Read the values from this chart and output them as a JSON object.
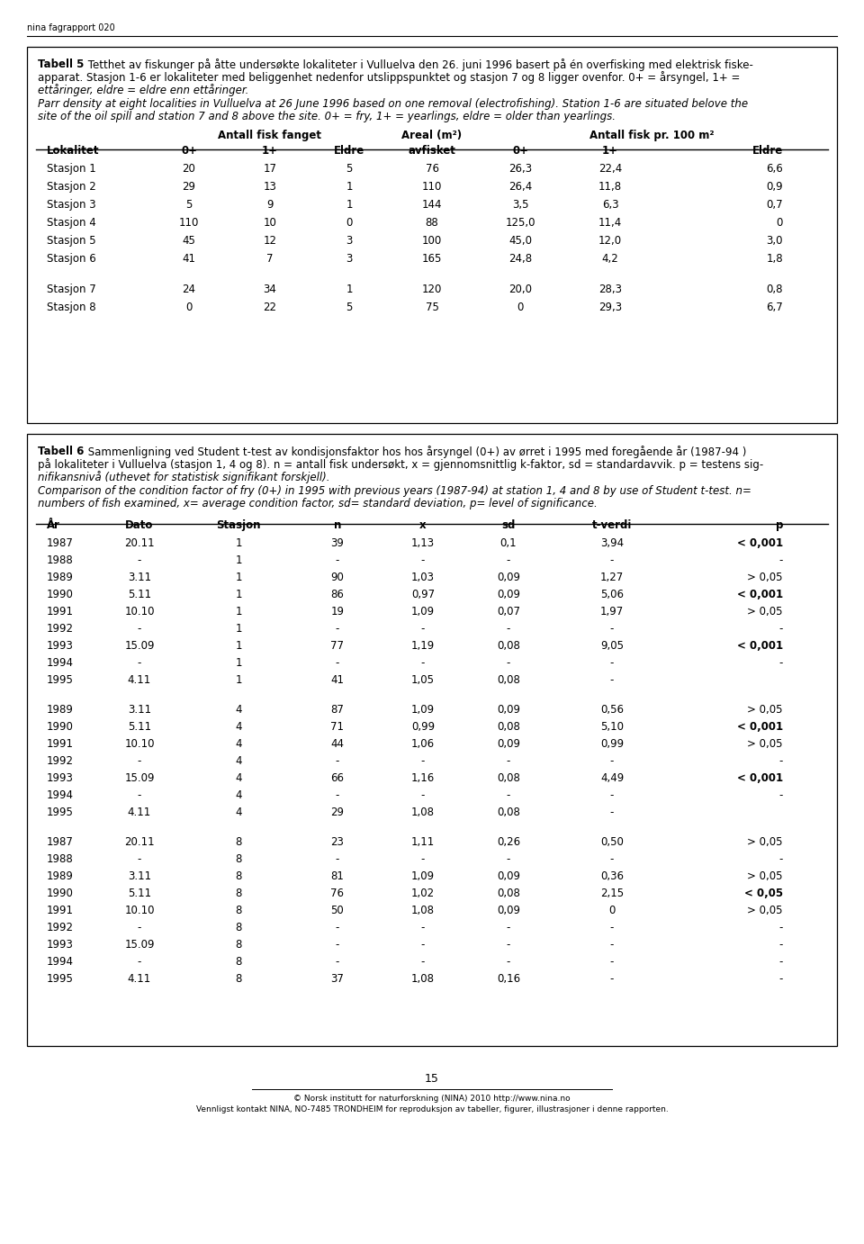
{
  "header_text": "nina fagrapport 020",
  "page_number": "15",
  "footer_line1": "© Norsk institutt for naturforskning (NINA) 2010 http://www.nina.no",
  "footer_line2": "Vennligst kontakt NINA, NO-7485 TRONDHEIM for reproduksjon av tabeller, figurer, illustrasjoner i denne rapporten.",
  "table5_caption_bold": "Tabell 5",
  "table5_caption_line1_rest": " Tetthet av fiskunger på åtte undersøkte lokaliteter i Vulluelva den 26. juni 1996 basert på én overfisking med elektrisk fiske-",
  "table5_caption_line2": "apparat. Stasjon 1-6 er lokaliteter med beliggenhet nedenfor utslippspunktet og stasjon 7 og 8 ligger ovenfor. 0+ = årsyngel, 1+ =",
  "table5_caption_line3": "ettåringer, eldre = eldre enn ettåringer.",
  "table5_italic_line1": "Parr density at eight localities in Vulluelva at 26 June 1996 based on one removal (electrofishing). Station 1-6 are situated belove the",
  "table5_italic_line2": "site of the oil spill and station 7 and 8 above the site. 0+ = fry, 1+ = yearlings, eldre = older than yearlings.",
  "table5_data": [
    [
      "Stasjon 1",
      "20",
      "17",
      "5",
      "76",
      "26,3",
      "22,4",
      "6,6"
    ],
    [
      "Stasjon 2",
      "29",
      "13",
      "1",
      "110",
      "26,4",
      "11,8",
      "0,9"
    ],
    [
      "Stasjon 3",
      "5",
      "9",
      "1",
      "144",
      "3,5",
      "6,3",
      "0,7"
    ],
    [
      "Stasjon 4",
      "110",
      "10",
      "0",
      "88",
      "125,0",
      "11,4",
      "0"
    ],
    [
      "Stasjon 5",
      "45",
      "12",
      "3",
      "100",
      "45,0",
      "12,0",
      "3,0"
    ],
    [
      "Stasjon 6",
      "41",
      "7",
      "3",
      "165",
      "24,8",
      "4,2",
      "1,8"
    ],
    [
      "Stasjon 7",
      "24",
      "34",
      "1",
      "120",
      "20,0",
      "28,3",
      "0,8"
    ],
    [
      "Stasjon 8",
      "0",
      "22",
      "5",
      "75",
      "0",
      "29,3",
      "6,7"
    ]
  ],
  "table5_group_break": 6,
  "table6_caption_bold": "Tabell 6",
  "table6_caption_line1_rest": " Sammenligning ved Student t-test av kondisjonsfaktor hos hos årsyngel (0+) av ørret i 1995 med foregående år (1987-94 )",
  "table6_caption_line2": "på lokaliteter i Vulluelva (stasjon 1, 4 og 8). n = antall fisk undersøkt, x = gjennomsnittlig k-faktor, sd = standardavvik. p = testens sig-",
  "table6_caption_line3": "nifikansnivå (uthevet for statistisk signifikant forskjell).",
  "table6_italic_line1": "Comparison of the condition factor of fry (0+) in 1995 with previous years (1987-94) at station 1, 4 and 8 by use of Student t-test. n=",
  "table6_italic_line2": "numbers of fish examined, x= average condition factor, sd= standard deviation, p= level of significance.",
  "table6_data": [
    [
      "1987",
      "20.11",
      "1",
      "39",
      "1,13",
      "0,1",
      "3,94",
      "< 0,001"
    ],
    [
      "1988",
      "-",
      "1",
      "-",
      "-",
      "-",
      "-",
      "-"
    ],
    [
      "1989",
      "3.11",
      "1",
      "90",
      "1,03",
      "0,09",
      "1,27",
      "> 0,05"
    ],
    [
      "1990",
      "5.11",
      "1",
      "86",
      "0,97",
      "0,09",
      "5,06",
      "< 0,001"
    ],
    [
      "1991",
      "10.10",
      "1",
      "19",
      "1,09",
      "0,07",
      "1,97",
      "> 0,05"
    ],
    [
      "1992",
      "-",
      "1",
      "-",
      "-",
      "-",
      "-",
      "-"
    ],
    [
      "1993",
      "15.09",
      "1",
      "77",
      "1,19",
      "0,08",
      "9,05",
      "< 0,001"
    ],
    [
      "1994",
      "-",
      "1",
      "-",
      "-",
      "-",
      "-",
      "-"
    ],
    [
      "1995",
      "4.11",
      "1",
      "41",
      "1,05",
      "0,08",
      "-",
      ""
    ],
    [
      "1989",
      "3.11",
      "4",
      "87",
      "1,09",
      "0,09",
      "0,56",
      "> 0,05"
    ],
    [
      "1990",
      "5.11",
      "4",
      "71",
      "0,99",
      "0,08",
      "5,10",
      "< 0,001"
    ],
    [
      "1991",
      "10.10",
      "4",
      "44",
      "1,06",
      "0,09",
      "0,99",
      "> 0,05"
    ],
    [
      "1992",
      "-",
      "4",
      "-",
      "-",
      "-",
      "-",
      "-"
    ],
    [
      "1993",
      "15.09",
      "4",
      "66",
      "1,16",
      "0,08",
      "4,49",
      "< 0,001"
    ],
    [
      "1994",
      "-",
      "4",
      "-",
      "-",
      "-",
      "-",
      "-"
    ],
    [
      "1995",
      "4.11",
      "4",
      "29",
      "1,08",
      "0,08",
      "-",
      ""
    ],
    [
      "1987",
      "20.11",
      "8",
      "23",
      "1,11",
      "0,26",
      "0,50",
      "> 0,05"
    ],
    [
      "1988",
      "-",
      "8",
      "-",
      "-",
      "-",
      "-",
      "-"
    ],
    [
      "1989",
      "3.11",
      "8",
      "81",
      "1,09",
      "0,09",
      "0,36",
      "> 0,05"
    ],
    [
      "1990",
      "5.11",
      "8",
      "76",
      "1,02",
      "0,08",
      "2,15",
      "< 0,05"
    ],
    [
      "1991",
      "10.10",
      "8",
      "50",
      "1,08",
      "0,09",
      "0",
      "> 0,05"
    ],
    [
      "1992",
      "-",
      "8",
      "-",
      "-",
      "-",
      "-",
      "-"
    ],
    [
      "1993",
      "15.09",
      "8",
      "-",
      "-",
      "-",
      "-",
      "-"
    ],
    [
      "1994",
      "-",
      "8",
      "-",
      "-",
      "-",
      "-",
      "-"
    ],
    [
      "1995",
      "4.11",
      "8",
      "37",
      "1,08",
      "0,16",
      "-",
      "-"
    ]
  ],
  "table6_group_breaks": [
    9,
    16
  ],
  "table6_bold_p": [
    "< 0,001",
    "< 0,05"
  ]
}
